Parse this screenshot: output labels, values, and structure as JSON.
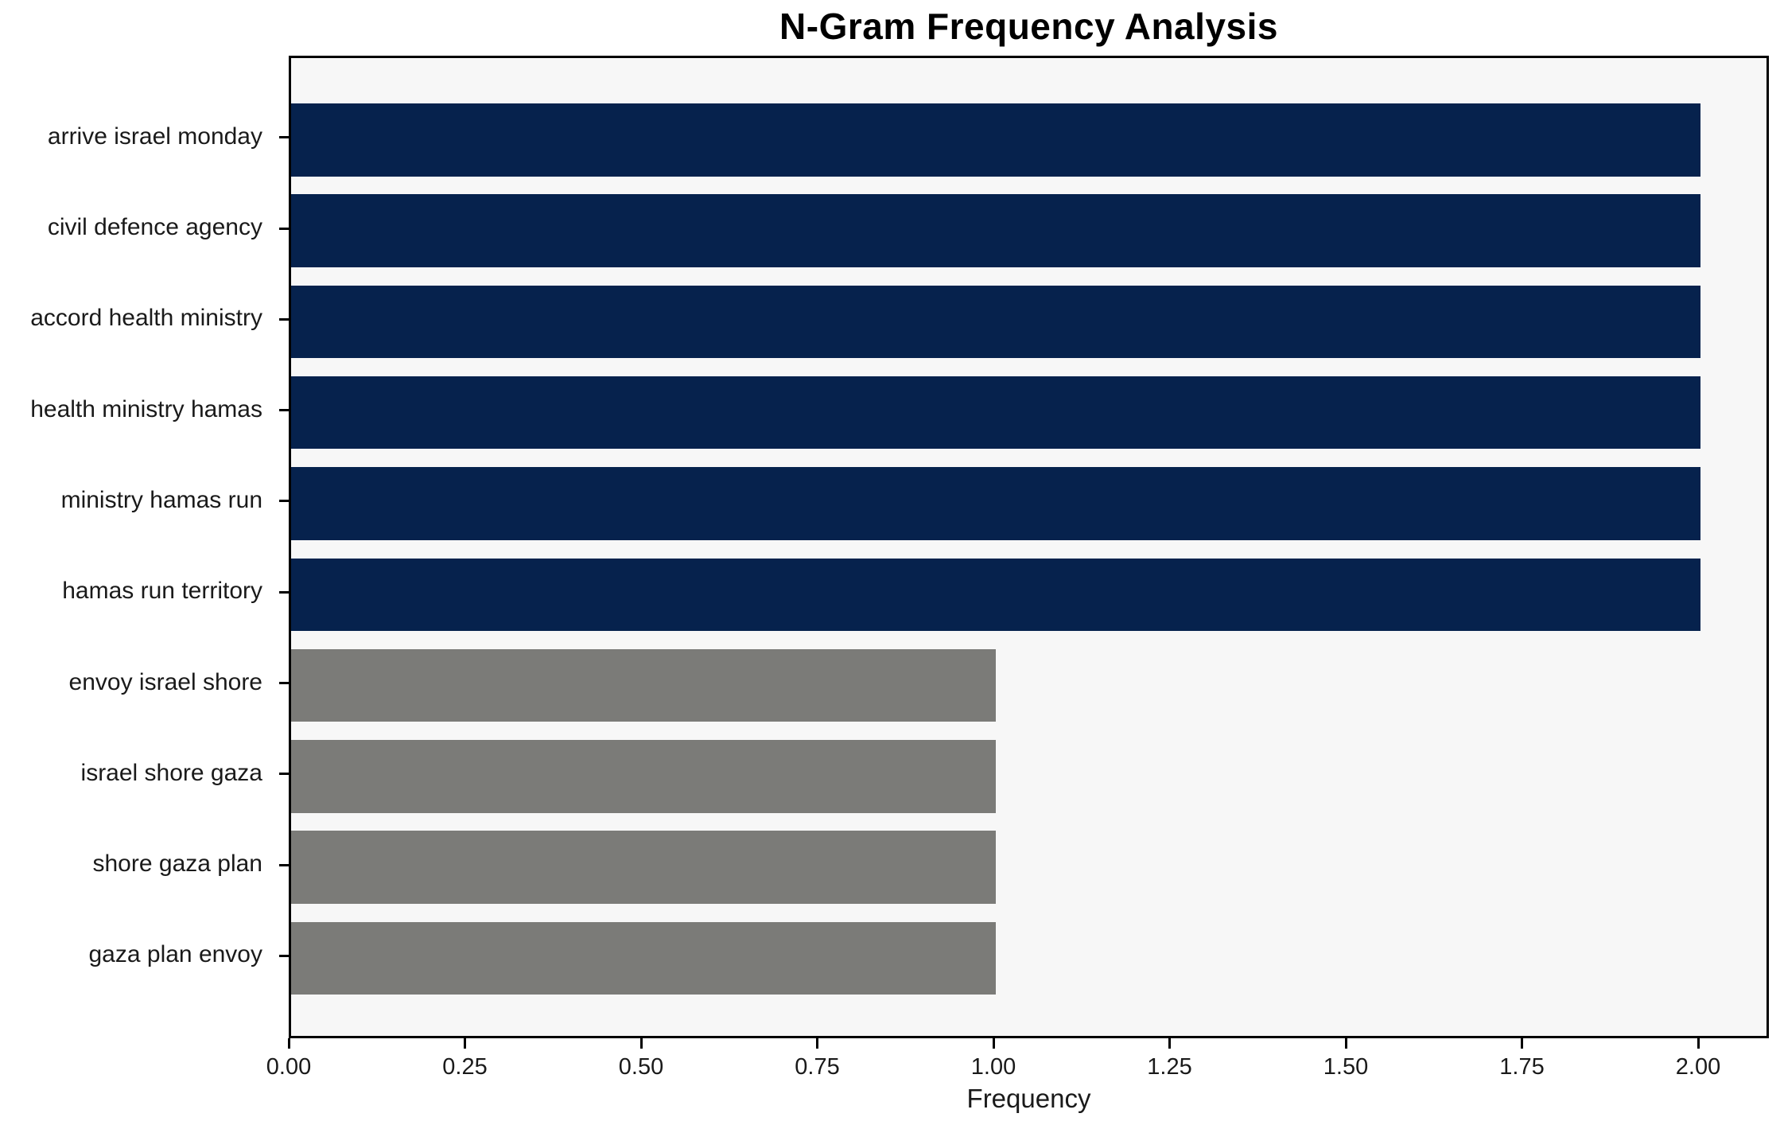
{
  "chart_data": {
    "type": "bar",
    "orientation": "horizontal",
    "title": "N-Gram Frequency Analysis",
    "xlabel": "Frequency",
    "ylabel": "",
    "categories": [
      "arrive israel monday",
      "civil defence agency",
      "accord health ministry",
      "health ministry hamas",
      "ministry hamas run",
      "hamas run territory",
      "envoy israel shore",
      "israel shore gaza",
      "shore gaza plan",
      "gaza plan envoy"
    ],
    "values": [
      2,
      2,
      2,
      2,
      2,
      2,
      1,
      1,
      1,
      1
    ],
    "bar_colors": [
      "#06224d",
      "#06224d",
      "#06224d",
      "#06224d",
      "#06224d",
      "#06224d",
      "#7b7b78",
      "#7b7b78",
      "#7b7b78",
      "#7b7b78"
    ],
    "xtick_labels": [
      "0.00",
      "0.25",
      "0.50",
      "0.75",
      "1.00",
      "1.25",
      "1.50",
      "1.75",
      "2.00"
    ],
    "xtick_values": [
      0,
      0.25,
      0.5,
      0.75,
      1.0,
      1.25,
      1.5,
      1.75,
      2.0
    ],
    "xlim": [
      0,
      2.1
    ],
    "grid": false,
    "legend": null,
    "colors": {
      "bar_frequency_2": "#06224d",
      "bar_frequency_1": "#7b7b78",
      "plot_background": "#f7f7f7",
      "figure_background": "#ffffff",
      "spine": "#000000",
      "text": "#1a1a1a"
    }
  }
}
